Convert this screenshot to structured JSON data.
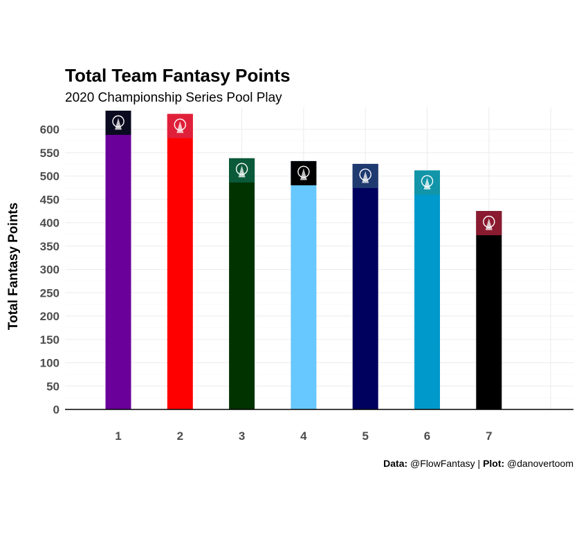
{
  "chart_data": {
    "type": "bar",
    "title": "Total Team Fantasy Points",
    "subtitle": "2020 Championship Series Pool Play",
    "xlabel": "",
    "ylabel": "Total Fantasy Points",
    "categories": [
      "1",
      "2",
      "3",
      "4",
      "5",
      "6",
      "7"
    ],
    "values": [
      640,
      633,
      538,
      532,
      526,
      512,
      425
    ],
    "ylim": [
      0,
      640
    ],
    "yticks": [
      0,
      50,
      100,
      150,
      200,
      250,
      300,
      350,
      400,
      450,
      500,
      550,
      600
    ],
    "grid": true,
    "bar_colors": [
      "#6a0099",
      "#ff0000",
      "#003300",
      "#66c8ff",
      "#00005e",
      "#0099cc",
      "#000000"
    ],
    "logo_colors": [
      "#0a0a20",
      "#e0203a",
      "#0a5a3a",
      "#000000",
      "#1f3a70",
      "#1295a8",
      "#8a1a30"
    ],
    "logo_icons": [
      "team-1-logo-icon",
      "team-2-logo-icon",
      "team-3-logo-icon",
      "team-4-logo-icon",
      "team-5-logo-icon",
      "team-6-logo-icon",
      "team-7-logo-icon"
    ]
  },
  "caption": {
    "data_label": "Data:",
    "data_value": " @FlowFantasy | ",
    "plot_label": "Plot:",
    "plot_value": " @danovertoom"
  }
}
